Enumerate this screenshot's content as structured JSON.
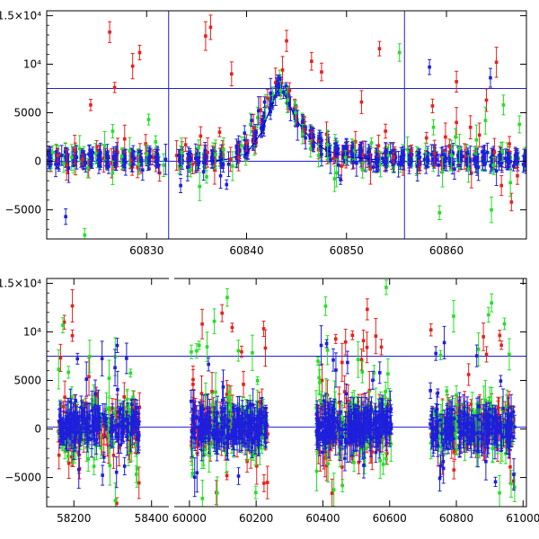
{
  "chart_data": [
    {
      "type": "scatter",
      "title": "",
      "xlabel": "",
      "ylabel": "",
      "xlim": [
        60820,
        60868
      ],
      "ylim": [
        -8000,
        15500
      ],
      "x_ticks": [
        60830,
        60840,
        60850,
        60860
      ],
      "x_tick_labels": [
        "60830",
        "60840",
        "60850",
        "60860"
      ],
      "y_ticks": [
        -5000,
        0,
        5000,
        10000,
        15000
      ],
      "y_tick_labels": [
        "−5000",
        "0",
        "5000",
        "10⁴",
        "1.5×10⁴"
      ],
      "hlines": [
        7500,
        0
      ],
      "vlines": [
        60832.2,
        60855.8
      ],
      "model_curve": {
        "color": "#0000cc",
        "x": [
          60836,
          60838,
          60840,
          60841.5,
          60842.5,
          60843.3,
          60844,
          60845,
          60846.5,
          60848,
          60850,
          60853
        ],
        "y": [
          0,
          200,
          800,
          3000,
          5800,
          7600,
          6500,
          4200,
          2200,
          1100,
          500,
          150
        ]
      },
      "series": [
        {
          "name": "red",
          "color": "#e8201c",
          "x": [
            60821.1,
            60822.0,
            60822.8,
            60823.6,
            60824.2,
            60825.0,
            60825.7,
            60826.5,
            60827.1,
            60827.8,
            60828.4,
            60829.1,
            60829.9,
            60830.6,
            60831.3,
            60833.0,
            60833.9,
            60834.6,
            60835.4,
            60836.1,
            60836.8,
            60837.6,
            60838.4,
            60839.2,
            60840.0,
            60840.7,
            60841.4,
            60842.1,
            60842.9,
            60843.6,
            60844.3,
            60845.0,
            60845.8,
            60846.5,
            60847.2,
            60848.0,
            60848.7,
            60849.5,
            60850.2,
            60850.9,
            60851.7,
            60852.4,
            60853.2,
            60853.9,
            60854.7,
            60856.5,
            60857.3,
            60858.0,
            60858.8,
            60859.5,
            60860.3,
            60861.0,
            60861.8,
            60862.5,
            60863.3,
            60864.0,
            60864.8,
            60865.5,
            60866.3,
            60867.1,
            60826.3,
            60826.8,
            60829.3,
            60836.4,
            60838.5,
            60844.0,
            60846.5,
            60851.5,
            60858.6,
            60861.0,
            60865.0,
            60828.6,
            60835.9,
            60847.5,
            60862.4,
            60866.5,
            60824.4,
            60837.3,
            60853.3,
            60859.9
          ],
          "y": [
            600,
            -400,
            1200,
            200,
            -800,
            1500,
            300,
            -200,
            900,
            2300,
            100,
            -600,
            1800,
            400,
            -1200,
            600,
            1700,
            -300,
            2600,
            900,
            -900,
            1300,
            200,
            400,
            1900,
            3400,
            5300,
            6500,
            8100,
            9400,
            7300,
            4600,
            3200,
            2100,
            1200,
            2800,
            300,
            -500,
            1000,
            2000,
            600,
            -800,
            1600,
            3100,
            400,
            1100,
            -600,
            2400,
            800,
            -300,
            1500,
            4000,
            500,
            -1200,
            2700,
            6300,
            900,
            -2500,
            1800,
            -1500,
            13300,
            7600,
            11200,
            13800,
            9000,
            12400,
            10300,
            6100,
            5700,
            8200,
            10200,
            9800,
            12900,
            9200,
            3500,
            -4200,
            5800,
            3000,
            11600,
            2500
          ]
        },
        {
          "name": "green",
          "color": "#22e022",
          "x": [
            60820.6,
            60821.7,
            60822.5,
            60823.3,
            60824.1,
            60824.9,
            60825.8,
            60826.6,
            60827.5,
            60828.3,
            60829.2,
            60830.0,
            60830.9,
            60831.7,
            60833.5,
            60834.4,
            60835.2,
            60836.0,
            60836.9,
            60837.7,
            60838.6,
            60839.5,
            60840.4,
            60841.1,
            60841.9,
            60842.6,
            60843.4,
            60844.1,
            60844.9,
            60845.6,
            60846.4,
            60847.2,
            60848.1,
            60849.0,
            60849.9,
            60850.8,
            60851.6,
            60852.5,
            60853.4,
            60854.2,
            60856.1,
            60857.0,
            60857.9,
            60858.7,
            60859.6,
            60860.5,
            60861.3,
            60862.2,
            60863.0,
            60863.9,
            60864.7,
            60865.6,
            60866.4,
            60867.3,
            60826.6,
            60830.2,
            60835.3,
            60848.8,
            60855.3,
            60859.3,
            60865.7,
            60823.8,
            60860.9,
            60864.5
          ],
          "y": [
            900,
            -200,
            400,
            1300,
            -700,
            800,
            1600,
            -1200,
            500,
            1100,
            -300,
            700,
            2000,
            -400,
            900,
            -900,
            1400,
            -1600,
            700,
            1200,
            -500,
            1600,
            3800,
            4500,
            5600,
            6900,
            7300,
            6300,
            5000,
            2800,
            1300,
            600,
            1700,
            -1200,
            400,
            1100,
            -900,
            1900,
            -300,
            600,
            1200,
            -500,
            800,
            3500,
            -1100,
            600,
            1300,
            -800,
            2200,
            4200,
            -400,
            1000,
            -2200,
            3800,
            3100,
            4300,
            -2600,
            -1800,
            11200,
            -5300,
            5800,
            -7600,
            2500,
            -5000
          ]
        },
        {
          "name": "blue",
          "color": "#1e1edc",
          "x": [
            60820.3,
            60820.9,
            60821.5,
            60822.2,
            60823.0,
            60823.9,
            60824.6,
            60825.4,
            60826.2,
            60827.0,
            60827.9,
            60828.8,
            60829.6,
            60830.4,
            60831.2,
            60831.9,
            60833.2,
            60834.1,
            60834.9,
            60835.7,
            60836.5,
            60837.4,
            60838.2,
            60839.0,
            60839.8,
            60840.5,
            60841.2,
            60841.8,
            60842.4,
            60843.0,
            60843.7,
            60844.4,
            60845.1,
            60845.9,
            60846.7,
            60847.5,
            60848.4,
            60849.2,
            60850.1,
            60851.0,
            60851.9,
            60852.7,
            60853.6,
            60854.4,
            60855.2,
            60856.3,
            60857.1,
            60857.8,
            60858.5,
            60859.2,
            60860.0,
            60860.8,
            60861.6,
            60862.4,
            60863.2,
            60864.1,
            60865.0,
            60865.9,
            60866.7,
            60821.9,
            60838.0,
            60842.9,
            60858.3,
            60864.4,
            60833.4,
            60849.4
          ],
          "y": [
            200,
            -300,
            600,
            -700,
            400,
            -200,
            900,
            100,
            -500,
            700,
            -100,
            300,
            -900,
            500,
            -400,
            200,
            600,
            -600,
            300,
            -1100,
            400,
            -1500,
            -300,
            1500,
            2900,
            4200,
            5200,
            6100,
            7000,
            7800,
            7100,
            5400,
            3700,
            2400,
            1500,
            700,
            200,
            -400,
            800,
            -200,
            500,
            -600,
            300,
            900,
            -300,
            600,
            -500,
            200,
            700,
            -400,
            300,
            -800,
            500,
            100,
            -600,
            900,
            -1000,
            300,
            -500,
            -5700,
            -2400,
            6700,
            9700,
            8600,
            -2500,
            -1900
          ]
        }
      ]
    },
    {
      "type": "scatter",
      "title": "",
      "xlabel": "",
      "ylabel": "",
      "xlim": [
        58130,
        61010
      ],
      "ylim": [
        -8000,
        15500
      ],
      "x_ticks": [
        58200,
        58400,
        60000,
        60200,
        60400,
        60600,
        60800,
        61000
      ],
      "x_tick_labels": [
        "58200",
        "58400",
        "60000",
        "60200",
        "60400",
        "60600",
        "60800",
        "61000"
      ],
      "y_ticks": [
        -5000,
        0,
        5000,
        10000,
        15000
      ],
      "y_tick_labels": [
        "−5000",
        "0",
        "5000",
        "10⁴",
        "1.5×10⁴"
      ],
      "hlines": [
        7500,
        200
      ],
      "x_breaks": [
        58440,
        59960
      ],
      "observing_seasons": [
        {
          "start": 58160,
          "end": 58370,
          "points_per_color": 90
        },
        {
          "start": 60005,
          "end": 60235,
          "points_per_color": 100
        },
        {
          "start": 60380,
          "end": 60605,
          "points_per_color": 110
        },
        {
          "start": 60720,
          "end": 60975,
          "points_per_color": 100
        }
      ],
      "series": [
        {
          "name": "red",
          "color": "#e8201c"
        },
        {
          "name": "green",
          "color": "#22e022"
        },
        {
          "name": "blue",
          "color": "#1e1edc"
        }
      ]
    }
  ]
}
